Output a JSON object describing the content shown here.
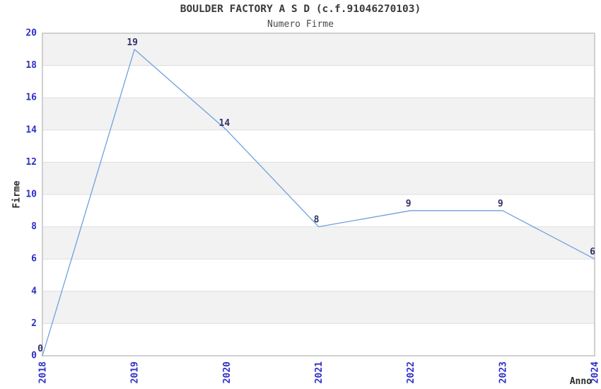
{
  "page": {
    "title": "BOULDER FACTORY A S D (c.f.91046270103)",
    "subtitle": "Numero Firme"
  },
  "chart_data": {
    "type": "line",
    "title": "BOULDER FACTORY A S D (c.f.91046270103)",
    "subtitle": "Numero Firme",
    "xlabel": "Anno",
    "ylabel": "Firme",
    "x": [
      "2018",
      "2019",
      "2020",
      "2021",
      "2022",
      "2023",
      "2024"
    ],
    "values": [
      0,
      19,
      14,
      8,
      9,
      9,
      6
    ],
    "data_labels": [
      "0",
      "19",
      "14",
      "8",
      "9",
      "9",
      "6"
    ],
    "ylim": [
      0,
      20
    ],
    "yticks": [
      0,
      2,
      4,
      6,
      8,
      10,
      12,
      14,
      16,
      18,
      20
    ],
    "grid": "horizontal-alternating-bands",
    "legend": "none",
    "markers": "none",
    "colors": {
      "line": "#6fa1dc",
      "band": "#f2f2f2",
      "grid_line": "#dedede",
      "plot_border": "#d0d0d0",
      "tick_label": "#2e2ec8",
      "data_label": "#31316b",
      "title": "#3a3a3a",
      "subtitle": "#4a4a4a",
      "axis_label": "#2b2b2b",
      "background": "#ffffff"
    }
  }
}
